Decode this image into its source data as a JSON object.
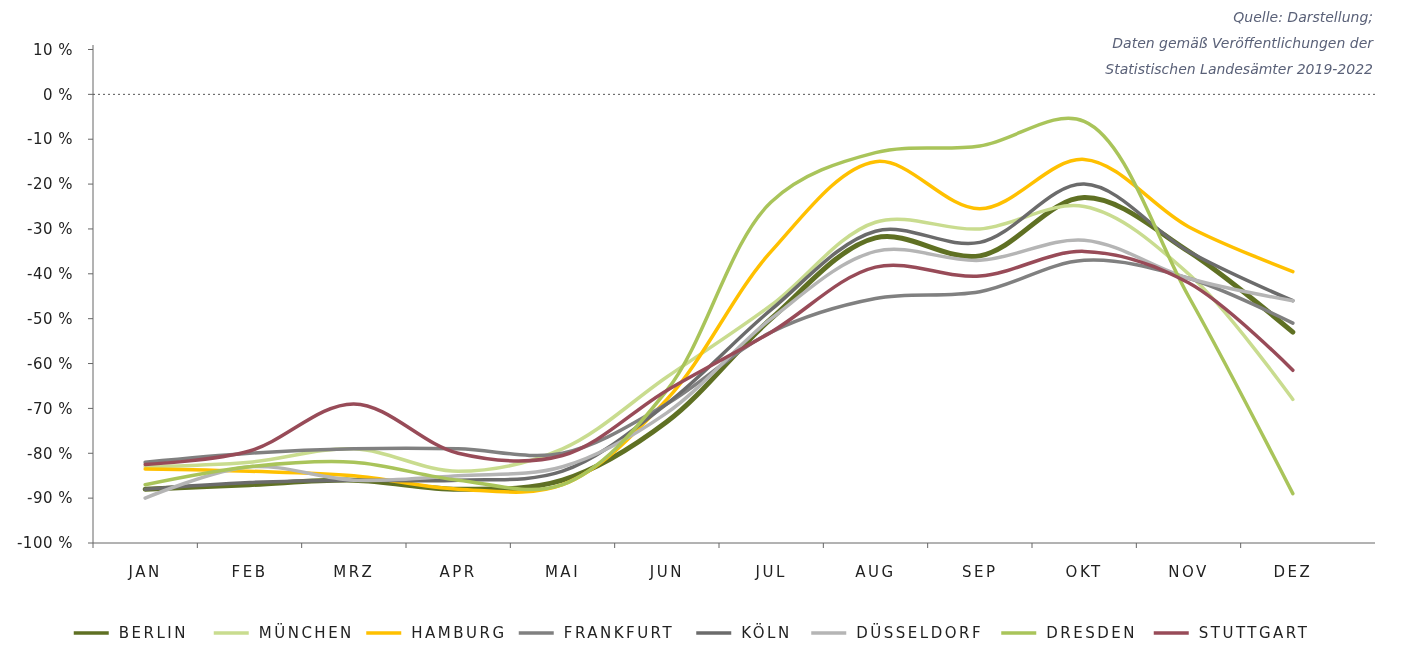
{
  "chart_data": {
    "type": "line",
    "categories": [
      "JAN",
      "FEB",
      "MRZ",
      "APR",
      "MAI",
      "JUN",
      "JUL",
      "AUG",
      "SEP",
      "OKT",
      "NOV",
      "DEZ"
    ],
    "ylim": [
      -100,
      11
    ],
    "yticks": [
      {
        "value": 10,
        "label": "10 %"
      },
      {
        "value": 0,
        "label": "0 %"
      },
      {
        "value": -10,
        "label": "-10 %"
      },
      {
        "value": -20,
        "label": "-20 %"
      },
      {
        "value": -30,
        "label": "-30 %"
      },
      {
        "value": -40,
        "label": "-40 %"
      },
      {
        "value": -50,
        "label": "-50 %"
      },
      {
        "value": -60,
        "label": "-60 %"
      },
      {
        "value": -70,
        "label": "-70 %"
      },
      {
        "value": -80,
        "label": "-80 %"
      },
      {
        "value": -90,
        "label": "-90 %"
      },
      {
        "value": -100,
        "label": "-100 %"
      }
    ],
    "grid": false,
    "legend": "bottom",
    "marker": "none",
    "line_style": "solid",
    "ref_lines": [
      {
        "axis": "y",
        "value": 0,
        "color": "#555555",
        "line_style": "dotted"
      }
    ],
    "annotations": [
      "Quelle: Darstellung;",
      "Daten gemäß Veröffentlichungen der",
      "Statistischen Landesämter 2019-2022"
    ],
    "series": [
      {
        "name": "BERLIN",
        "color": "#5f7023",
        "values": [
          -88,
          -87,
          -86,
          -88,
          -86,
          -73,
          -50,
          -32,
          -36,
          -23,
          -35,
          -53
        ]
      },
      {
        "name": "MÜNCHEN",
        "color": "#c9dc8f",
        "values": [
          -83,
          -82,
          -79,
          -84,
          -79,
          -63,
          -47,
          -28.5,
          -30,
          -25,
          -40,
          -68
        ]
      },
      {
        "name": "HAMBURG",
        "color": "#ffc000",
        "values": [
          -83.5,
          -84,
          -85,
          -88,
          -87,
          -68,
          -35,
          -15,
          -25.5,
          -14.5,
          -29.5,
          -39.5
        ]
      },
      {
        "name": "FRANKFURT",
        "color": "#808080",
        "values": [
          -82,
          -80,
          -79,
          -79,
          -80,
          -69,
          -53,
          -45.5,
          -44,
          -37,
          -41,
          -51
        ]
      },
      {
        "name": "KÖLN",
        "color": "#6b6b6b",
        "values": [
          -88,
          -86.5,
          -86,
          -86,
          -84,
          -69,
          -48,
          -30.5,
          -33,
          -20,
          -35,
          -46
        ]
      },
      {
        "name": "DÜSSELDORF",
        "color": "#b5b5b5",
        "values": [
          -90,
          -83,
          -86,
          -85,
          -83,
          -71,
          -50,
          -35,
          -37,
          -32.5,
          -41,
          -46
        ]
      },
      {
        "name": "DRESDEN",
        "color": "#a9c45a",
        "values": [
          -87,
          -83,
          -82,
          -86,
          -87,
          -66,
          -24,
          -13,
          -11.5,
          -6,
          -45,
          -89
        ]
      },
      {
        "name": "STUTTGART",
        "color": "#984b58",
        "values": [
          -82.5,
          -79.5,
          -69,
          -80,
          -80.5,
          -66,
          -53,
          -38.5,
          -40.5,
          -35,
          -42,
          -61.5
        ]
      }
    ]
  }
}
